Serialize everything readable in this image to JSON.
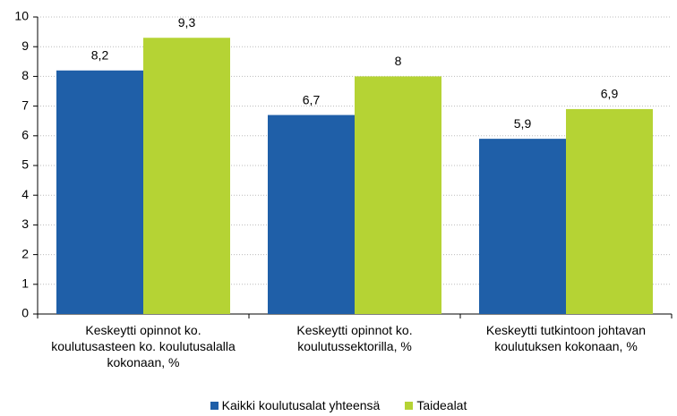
{
  "chart_data": {
    "type": "bar",
    "categories": [
      "Keskeytti opinnot ko. koulutusasteen ko. koulutusalalla kokonaan, %",
      "Keskeytti opinnot ko. koulutussektorilla, %",
      "Keskeytti tutkintoon johtavan koulutuksen kokonaan, %"
    ],
    "series": [
      {
        "name": "Kaikki koulutusalat yhteensä",
        "color": "#1f5fa8",
        "values": [
          8.2,
          6.7,
          5.9
        ],
        "value_labels": [
          "8,2",
          "6,7",
          "5,9"
        ]
      },
      {
        "name": "Taidealat",
        "color": "#b5d334",
        "values": [
          9.3,
          8,
          6.9
        ],
        "value_labels": [
          "9,3",
          "8",
          "6,9"
        ]
      }
    ],
    "ylim": [
      0,
      10
    ],
    "yticks": [
      0,
      1,
      2,
      3,
      4,
      5,
      6,
      7,
      8,
      9,
      10
    ],
    "grid": true,
    "legend": "bottom"
  }
}
